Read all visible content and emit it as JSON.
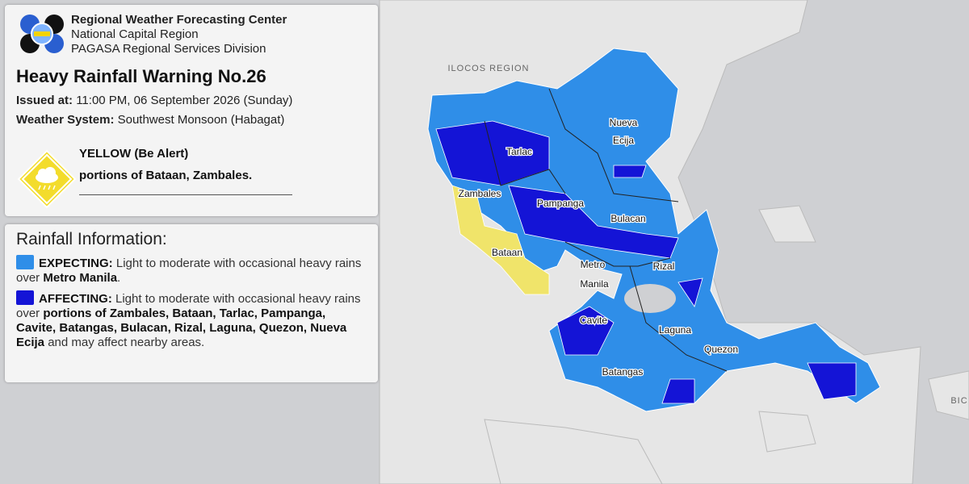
{
  "header": {
    "org_lines": [
      "Regional Weather Forecasting Center",
      "National Capital Region",
      "PAGASA Regional Services Division"
    ],
    "title": "Heavy Rainfall Warning No.26",
    "issued_at": {
      "label": "Issued at:",
      "value": "11:00 PM, 06 September 2026 (Sunday)"
    },
    "weather_system": {
      "label": "Weather System:",
      "value": "Southwest Monsoon (Habagat)"
    },
    "alert": {
      "level": "YELLOW (Be Alert)",
      "areas": "portions of Bataan, Zambales."
    }
  },
  "rainfall": {
    "title": "Rainfall Information:",
    "expecting": {
      "label": "EXPECTING:",
      "text_1": "Light to moderate with occasional heavy rains over",
      "emphasis": "Metro Manila",
      "text_2": "."
    },
    "affecting": {
      "label": "AFFECTING:",
      "text_1": "Light to moderate with occasional heavy rains over",
      "emphasis": "portions of Zambales, Bataan, Tarlac, Pampanga, Cavite, Batangas, Bulacan, Rizal, Laguna, Quezon, Nueva Ecija",
      "text_2": "and may affect nearby areas."
    }
  },
  "map": {
    "labels": [
      "ILOCOS REGION",
      "Tarlac",
      "Nueva",
      "Ecija",
      "Zambales",
      "Pampanga",
      "Bulacan",
      "Bataan",
      "Metro",
      "Manila",
      "Rizal",
      "Cavite",
      "Laguna",
      "Quezon",
      "Batangas",
      "BIC"
    ]
  }
}
